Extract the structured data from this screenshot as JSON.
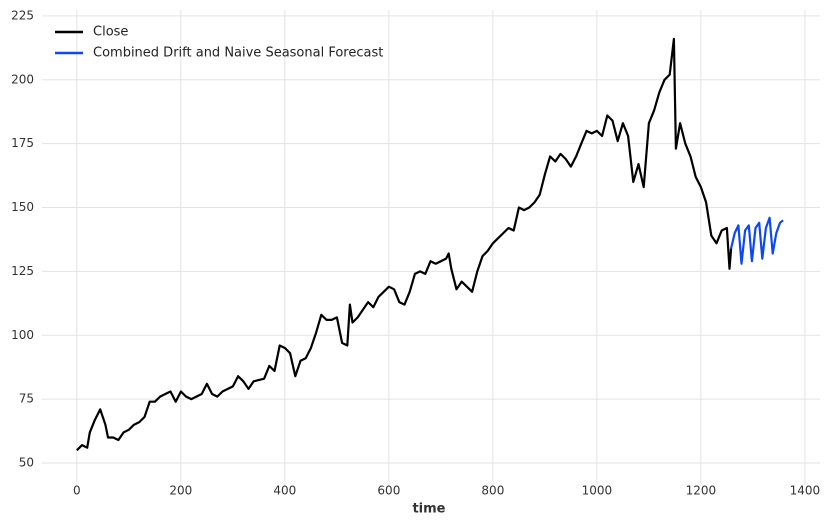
{
  "chart_data": {
    "type": "line",
    "x_label": "time",
    "xlim": [
      -67,
      1429
    ],
    "ylim": [
      41.4,
      227.3
    ],
    "xticks": [
      0,
      200,
      400,
      600,
      800,
      1000,
      1200,
      1400
    ],
    "yticks": [
      50,
      75,
      100,
      125,
      150,
      175,
      200,
      225
    ],
    "grid": true,
    "legend": "upper-left",
    "series": [
      {
        "name": "Close",
        "color": "#000000",
        "x": [
          0,
          10,
          20,
          25,
          35,
          45,
          55,
          60,
          70,
          80,
          90,
          100,
          110,
          120,
          130,
          140,
          150,
          160,
          170,
          180,
          190,
          200,
          210,
          220,
          240,
          250,
          260,
          270,
          280,
          300,
          310,
          320,
          330,
          340,
          360,
          370,
          380,
          390,
          400,
          410,
          420,
          430,
          440,
          450,
          460,
          470,
          480,
          490,
          500,
          510,
          520,
          525,
          530,
          540,
          550,
          560,
          570,
          580,
          590,
          600,
          610,
          620,
          630,
          640,
          650,
          660,
          670,
          680,
          690,
          700,
          710,
          715,
          720,
          730,
          740,
          750,
          760,
          770,
          780,
          790,
          800,
          810,
          820,
          830,
          840,
          850,
          860,
          870,
          880,
          890,
          900,
          910,
          920,
          930,
          940,
          950,
          960,
          970,
          980,
          990,
          1000,
          1010,
          1020,
          1030,
          1040,
          1050,
          1060,
          1070,
          1080,
          1090,
          1100,
          1110,
          1120,
          1130,
          1140,
          1148,
          1152,
          1160,
          1170,
          1180,
          1190,
          1200,
          1210,
          1220,
          1230,
          1240,
          1250,
          1255,
          1258
        ],
        "values": [
          55,
          57,
          56,
          62,
          67,
          71,
          65,
          60,
          60,
          59,
          62,
          63,
          65,
          66,
          68,
          74,
          74,
          76,
          77,
          78,
          74,
          78,
          76,
          75,
          77,
          81,
          77,
          76,
          78,
          80,
          84,
          82,
          79,
          82,
          83,
          88,
          86,
          96,
          95,
          93,
          84,
          90,
          91,
          95,
          101,
          108,
          106,
          106,
          107,
          97,
          96,
          112,
          105,
          107,
          110,
          113,
          111,
          115,
          117,
          119,
          118,
          113,
          112,
          117,
          124,
          125,
          124,
          129,
          128,
          129,
          130,
          132,
          126,
          118,
          121,
          119,
          117,
          125,
          131,
          133,
          136,
          138,
          140,
          142,
          141,
          150,
          149,
          150,
          152,
          155,
          163,
          170,
          168,
          171,
          169,
          166,
          170,
          175,
          180,
          179,
          180,
          178,
          186,
          184,
          176,
          183,
          178,
          160,
          167,
          158,
          183,
          188,
          195,
          200,
          202,
          216,
          173,
          183,
          175,
          170,
          162,
          158,
          152,
          139,
          136,
          141,
          142,
          126,
          134
        ]
      },
      {
        "name": "Combined Drift and Naive Seasonal Forecast",
        "color": "#0c48f5",
        "x": [
          1258,
          1265,
          1272,
          1278,
          1285,
          1292,
          1298,
          1305,
          1312,
          1318,
          1325,
          1332,
          1338,
          1345,
          1352,
          1358
        ],
        "values": [
          134,
          140,
          143,
          128,
          141,
          143,
          129,
          142,
          144,
          130,
          142,
          146,
          132,
          140,
          144,
          145
        ]
      }
    ]
  }
}
